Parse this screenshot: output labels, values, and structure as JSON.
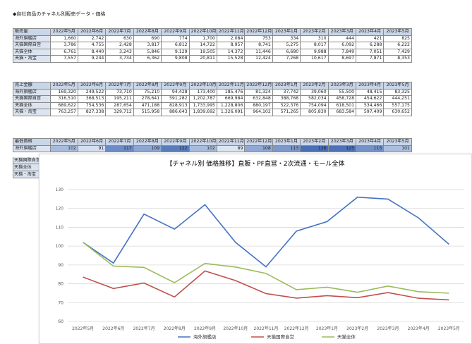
{
  "page_title": "◆自社商品のチャネル別販売データ・価格",
  "months": [
    "2022年5月",
    "2022年6月",
    "2022年7月",
    "2022年8月",
    "2022年9月",
    "2022年10月",
    "2022年11月",
    "2022年12月",
    "2023年1月",
    "2023年2月",
    "2023年3月",
    "2023年4月",
    "2023年5月"
  ],
  "tables": [
    {
      "header": "販売量",
      "rows": [
        {
          "label": "海外旗艦店",
          "values": [
            "1,660",
            "2,742",
            "630",
            "690",
            "774",
            "1,700",
            "2,084",
            "753",
            "334",
            "310",
            "444",
            "421",
            "825"
          ]
        },
        {
          "label": "天猫国際自営",
          "values": [
            "3,786",
            "4,755",
            "2,428",
            "3,817",
            "6,812",
            "14,722",
            "8,957",
            "8,741",
            "5,275",
            "8,017",
            "6,092",
            "6,288",
            "6,222"
          ]
        },
        {
          "label": "天猫全体",
          "values": [
            "6,761",
            "8,440",
            "3,243",
            "5,846",
            "9,129",
            "19,505",
            "14,372",
            "11,446",
            "6,680",
            "9,988",
            "7,849",
            "7,051",
            "7,429"
          ]
        },
        {
          "label": "天猫・淘宝",
          "values": [
            "7,557",
            "9,244",
            "3,734",
            "6,362",
            "9,808",
            "20,811",
            "15,528",
            "12,424",
            "7,268",
            "10,617",
            "8,697",
            "7,871",
            "8,353"
          ]
        }
      ]
    },
    {
      "header": "売上金額",
      "rows": [
        {
          "label": "海外旗艦店",
          "values": [
            "169,320",
            "249,522",
            "73,710",
            "75,210",
            "94,428",
            "173,400",
            "185,476",
            "81,324",
            "37,742",
            "39,060",
            "55,500",
            "48,415",
            "83,325"
          ]
        },
        {
          "label": "天猫国際自営",
          "values": [
            "316,510",
            "368,513",
            "195,211",
            "278,641",
            "591,282",
            "1,202,787",
            "669,984",
            "632,848",
            "388,768",
            "582,034",
            "458,728",
            "454,622",
            "444,251"
          ]
        },
        {
          "label": "天猫全体",
          "values": [
            "689,622",
            "754,536",
            "287,654",
            "471,188",
            "828,913",
            "1,733,995",
            "1,228,806",
            "880,197",
            "522,376",
            "754,094",
            "618,501",
            "534,466",
            "557,175"
          ]
        },
        {
          "label": "天猫・淘宝",
          "values": [
            "763,257",
            "827,338",
            "329,712",
            "515,958",
            "886,643",
            "1,839,692",
            "1,326,091",
            "964,102",
            "571,265",
            "805,830",
            "683,584",
            "597,409",
            "630,652"
          ]
        }
      ]
    },
    {
      "header": "最低価格",
      "rows": [
        {
          "label": "海外旗艦店",
          "values": [
            "102",
            "91",
            "117",
            "109",
            "122",
            "102",
            "89",
            "108",
            "113",
            "126",
            "125",
            "115",
            "101"
          ]
        }
      ],
      "stub_rows": [
        "天猫国際自営",
        "天猫全体",
        "天猫・淘宝"
      ]
    }
  ],
  "chart_data": {
    "type": "line",
    "title": "【チャネル別 価格推移】直販・PF直営・2次流通・モール全体",
    "categories": [
      "2022年5月",
      "2022年6月",
      "2022年7月",
      "2022年8月",
      "2022年9月",
      "2022年10月",
      "2022年11月",
      "2022年12月",
      "2023年1月",
      "2023年2月",
      "2023年3月",
      "2023年4月",
      "2023年5月"
    ],
    "ylim": [
      60,
      130
    ],
    "yticks": [
      "60",
      "70",
      "80",
      "90",
      "100",
      "110",
      "120",
      "130"
    ],
    "grid": true,
    "legend_position": "bottom",
    "series": [
      {
        "name": "海外旗艦店",
        "color": "#4472c4",
        "values": [
          102,
          91,
          117,
          109,
          122,
          102,
          89,
          108,
          113,
          126,
          125,
          115,
          101
        ]
      },
      {
        "name": "天猫国際自営",
        "color": "#c0504d",
        "values": [
          83.6,
          77.5,
          80.4,
          73,
          86.8,
          81.7,
          74.8,
          72.4,
          73.7,
          72.6,
          75.3,
          72.3,
          71.4
        ]
      },
      {
        "name": "天猫全体",
        "color": "#9bbb59",
        "values": [
          102,
          89.4,
          88.7,
          80.6,
          90.8,
          88.9,
          85.5,
          76.9,
          78.2,
          75.5,
          78.8,
          75.8,
          75
        ]
      }
    ]
  },
  "colors": {
    "header_fill": "#c9d6e8",
    "label_fill": "#dbe4f0",
    "heat_low": "#dbe4f1",
    "heat_high": "#4a6fb5"
  }
}
